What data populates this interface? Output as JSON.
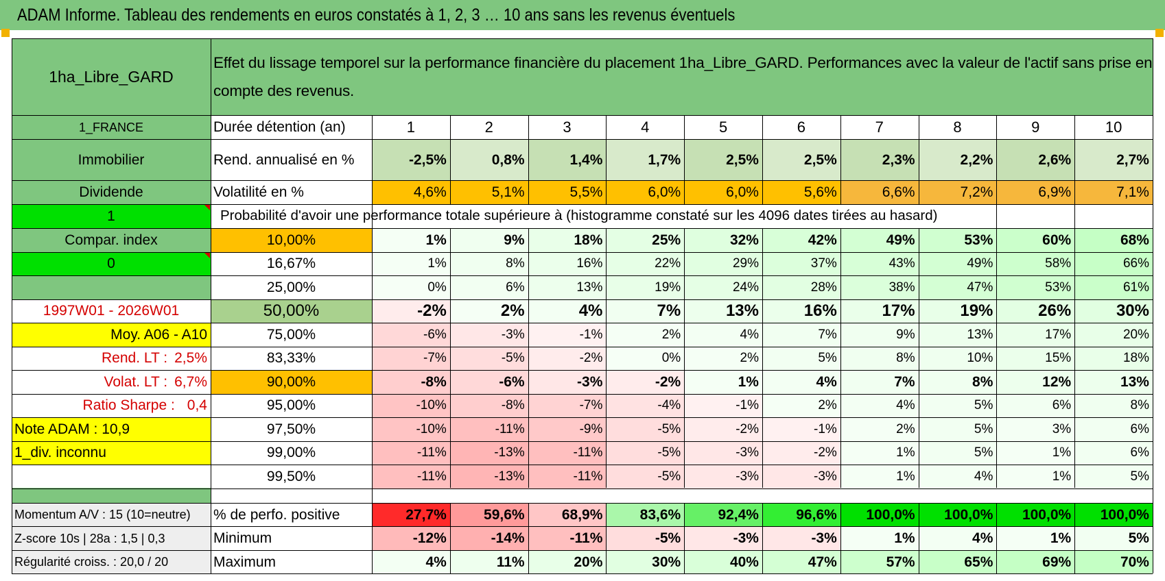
{
  "header": {
    "title": "ADAM Informe. Tableau des rendements en euros constatés à 1, 2, 3 … 10 ans sans les revenus éventuels"
  },
  "left_panel": {
    "fund_name": "1ha_Libre_GARD",
    "country": "1_FRANCE",
    "category": "Immobilier",
    "type": "Dividende",
    "flag1": "1",
    "compar_index": "Compar. index",
    "flag2": "0",
    "period": "1997W01 - 2026W01",
    "moy": "Moy. A06 - A10",
    "rend_lt_label": "Rend. LT :",
    "rend_lt_value": "2,5%",
    "volat_lt_label": "Volat. LT :",
    "volat_lt_value": "6,7%",
    "sharpe_label": "Ratio Sharpe :",
    "sharpe_value": "0,4",
    "note": "Note ADAM : 10,9",
    "div": "1_div. inconnu",
    "momentum": "Momentum A/V : 15 (10=neutre)",
    "zscore": "Z-score 10s | 28a : 1,5 | 0,3",
    "regularite": "Régularité croiss. : 20,0 / 20"
  },
  "description": "Effet du lissage temporel sur la performance financière du placement 1ha_Libre_GARD. Performances avec la valeur de l'actif sans prise en compte des revenus.",
  "durations": {
    "label": "Durée détention (an)",
    "years": [
      "1",
      "2",
      "3",
      "4",
      "5",
      "6",
      "7",
      "8",
      "9",
      "10"
    ]
  },
  "rendement": {
    "label": "Rend. annualisé en %",
    "values": [
      "-2,5%",
      "0,8%",
      "1,4%",
      "1,7%",
      "2,5%",
      "2,5%",
      "2,3%",
      "2,2%",
      "2,6%",
      "2,7%"
    ]
  },
  "volatilite": {
    "label": "Volatilité en %",
    "values": [
      "4,6%",
      "5,1%",
      "5,5%",
      "6,0%",
      "6,0%",
      "5,6%",
      "6,6%",
      "7,2%",
      "6,9%",
      "7,1%"
    ]
  },
  "probability_title": "Probabilité d'avoir une performance totale supérieure à (histogramme constaté sur les 4096 dates tirées au hasard)",
  "probability_rows": [
    {
      "p": "10,00%",
      "values": [
        "1%",
        "9%",
        "18%",
        "25%",
        "32%",
        "42%",
        "49%",
        "53%",
        "60%",
        "68%"
      ]
    },
    {
      "p": "16,67%",
      "values": [
        "1%",
        "8%",
        "16%",
        "22%",
        "29%",
        "37%",
        "43%",
        "49%",
        "58%",
        "66%"
      ]
    },
    {
      "p": "25,00%",
      "values": [
        "0%",
        "6%",
        "13%",
        "19%",
        "24%",
        "28%",
        "38%",
        "47%",
        "53%",
        "61%"
      ]
    },
    {
      "p": "50,00%",
      "values": [
        "-2%",
        "2%",
        "4%",
        "7%",
        "13%",
        "16%",
        "17%",
        "19%",
        "26%",
        "30%"
      ]
    },
    {
      "p": "75,00%",
      "values": [
        "-6%",
        "-3%",
        "-1%",
        "2%",
        "4%",
        "7%",
        "9%",
        "13%",
        "17%",
        "20%"
      ]
    },
    {
      "p": "83,33%",
      "values": [
        "-7%",
        "-5%",
        "-2%",
        "0%",
        "2%",
        "5%",
        "8%",
        "10%",
        "15%",
        "18%"
      ]
    },
    {
      "p": "90,00%",
      "values": [
        "-8%",
        "-6%",
        "-3%",
        "-2%",
        "1%",
        "4%",
        "7%",
        "8%",
        "12%",
        "13%"
      ]
    },
    {
      "p": "95,00%",
      "values": [
        "-10%",
        "-8%",
        "-7%",
        "-4%",
        "-1%",
        "2%",
        "4%",
        "5%",
        "6%",
        "8%"
      ]
    },
    {
      "p": "97,50%",
      "values": [
        "-10%",
        "-11%",
        "-9%",
        "-5%",
        "-2%",
        "-1%",
        "2%",
        "5%",
        "3%",
        "6%"
      ]
    },
    {
      "p": "99,00%",
      "values": [
        "-11%",
        "-13%",
        "-11%",
        "-5%",
        "-3%",
        "-2%",
        "1%",
        "5%",
        "1%",
        "6%"
      ]
    },
    {
      "p": "99,50%",
      "values": [
        "-11%",
        "-13%",
        "-11%",
        "-5%",
        "-3%",
        "-3%",
        "1%",
        "4%",
        "1%",
        "5%"
      ]
    }
  ],
  "positive": {
    "label": "% de perfo. positive",
    "values": [
      "27,7%",
      "59,6%",
      "68,9%",
      "83,6%",
      "92,4%",
      "96,6%",
      "100,0%",
      "100,0%",
      "100,0%",
      "100,0%"
    ]
  },
  "minimum": {
    "label": "Minimum",
    "values": [
      "-12%",
      "-14%",
      "-11%",
      "-5%",
      "-3%",
      "-3%",
      "1%",
      "4%",
      "1%",
      "5%"
    ]
  },
  "maximum": {
    "label": "Maximum",
    "values": [
      "4%",
      "11%",
      "20%",
      "30%",
      "40%",
      "47%",
      "57%",
      "65%",
      "69%",
      "70%"
    ]
  },
  "colors": {
    "banner_green": "#7fc67f",
    "bright_green": "#00e000",
    "orange": "#ffc000",
    "yellow": "#ffff00",
    "label_red": "#d40000"
  }
}
